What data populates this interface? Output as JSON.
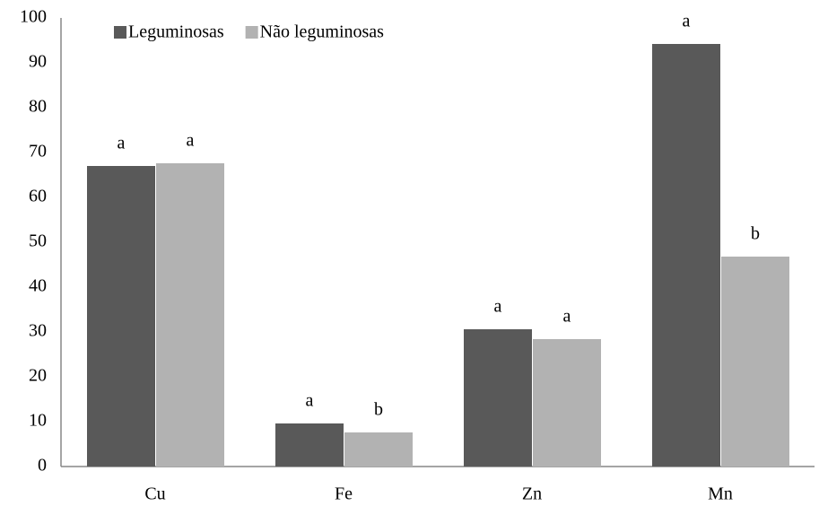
{
  "chart_data": {
    "type": "bar",
    "categories": [
      "Cu",
      "Fe",
      "Zn",
      "Mn"
    ],
    "series": [
      {
        "name": "Leguminosas",
        "color": "#595959",
        "values": [
          67,
          9.6,
          30.6,
          94.2
        ],
        "letters": [
          "a",
          "a",
          "a",
          "a"
        ]
      },
      {
        "name": "Não leguminosas",
        "color": "#b2b2b2",
        "values": [
          67.6,
          7.6,
          28.4,
          46.8
        ],
        "letters": [
          "a",
          "b",
          "a",
          "b"
        ]
      }
    ],
    "ylim": [
      0,
      100
    ],
    "yticks": [
      0,
      10,
      20,
      30,
      40,
      50,
      60,
      70,
      80,
      90,
      100
    ],
    "grid": false,
    "legend": "top-left"
  }
}
